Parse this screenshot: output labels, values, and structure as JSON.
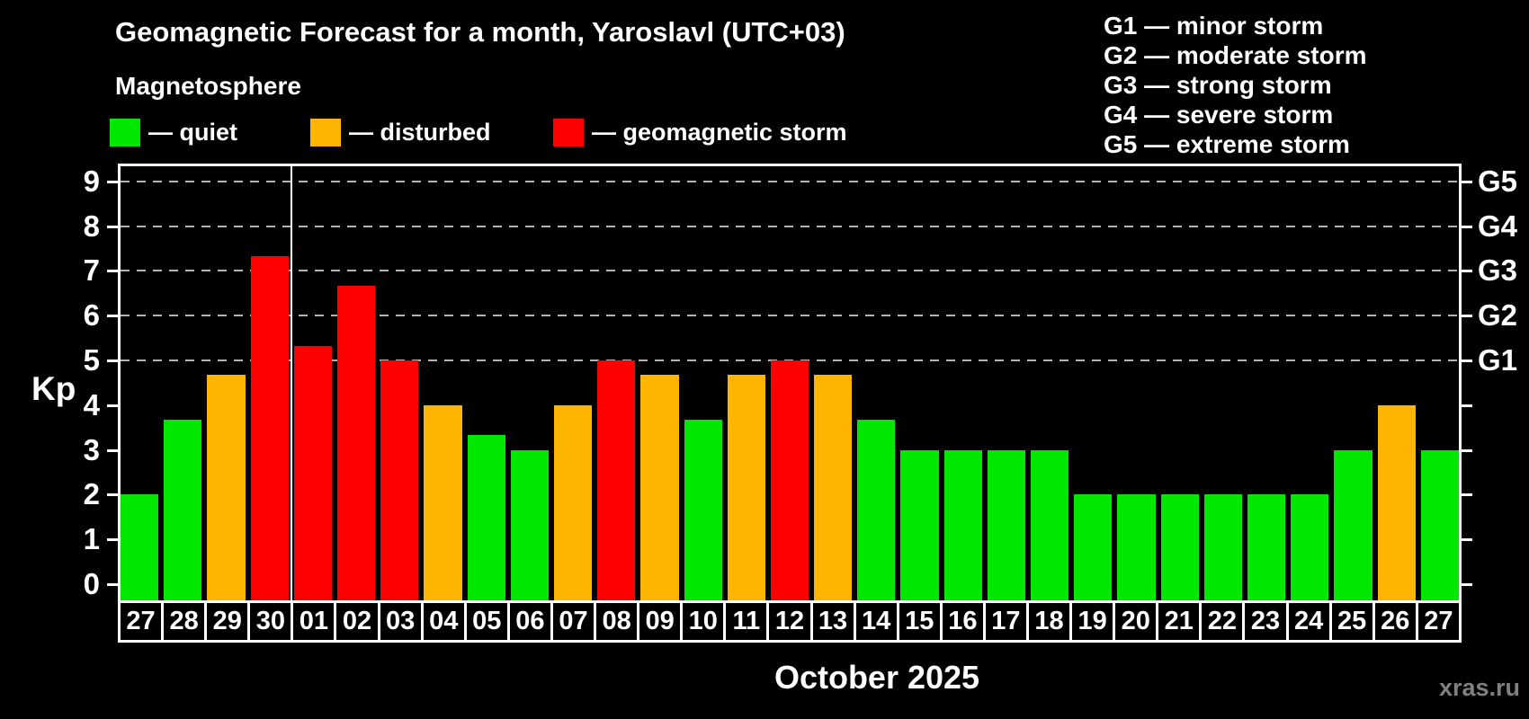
{
  "header": {
    "title": "Geomagnetic Forecast for a month, Yaroslavl (UTC+03)",
    "subtitle": "Magnetosphere"
  },
  "legend": {
    "items": [
      {
        "name": "quiet",
        "label": "— quiet",
        "color": "#00e800"
      },
      {
        "name": "disturbed",
        "label": "— disturbed",
        "color": "#ffb400"
      },
      {
        "name": "storm",
        "label": "— geomagnetic storm",
        "color": "#ff0000"
      }
    ]
  },
  "storm_scale_legend": {
    "items": [
      "G1 — minor storm",
      "G2 — moderate storm",
      "G3 — strong storm",
      "G4 — severe storm",
      "G5 — extreme storm"
    ]
  },
  "chart_data": {
    "type": "bar",
    "title": "Geomagnetic Forecast for a month, Yaroslavl (UTC+03)",
    "ylabel": "Kp",
    "xlabel": "October 2025",
    "ylim": [
      0,
      9.4
    ],
    "grid": "dashed horizontal lines at Kp 5-9 (G1-G5 levels)",
    "legend_position": "top",
    "yticks": [
      0,
      1,
      2,
      3,
      4,
      5,
      6,
      7,
      8,
      9
    ],
    "grid_kp_levels": [
      5,
      6,
      7,
      8,
      9
    ],
    "right_axis_labels": [
      {
        "label": "G1",
        "kp": 5
      },
      {
        "label": "G2",
        "kp": 6
      },
      {
        "label": "G3",
        "kp": 7
      },
      {
        "label": "G4",
        "kp": 8
      },
      {
        "label": "G5",
        "kp": 9
      }
    ],
    "month_separator_after_index": 3,
    "categories": [
      "27",
      "28",
      "29",
      "30",
      "01",
      "02",
      "03",
      "04",
      "05",
      "06",
      "07",
      "08",
      "09",
      "10",
      "11",
      "12",
      "13",
      "14",
      "15",
      "16",
      "17",
      "18",
      "19",
      "20",
      "21",
      "22",
      "23",
      "24",
      "25",
      "26",
      "27"
    ],
    "values": [
      2,
      3.67,
      4.67,
      7.33,
      5.33,
      6.67,
      5,
      4,
      3.33,
      3,
      4,
      5,
      4.67,
      3.67,
      4.67,
      5,
      4.67,
      3.67,
      3,
      3,
      3,
      3,
      2,
      2,
      2,
      2,
      2,
      2,
      3,
      4,
      3
    ],
    "statuses": [
      "quiet",
      "quiet",
      "disturbed",
      "storm",
      "storm",
      "storm",
      "storm",
      "disturbed",
      "quiet",
      "quiet",
      "disturbed",
      "storm",
      "disturbed",
      "quiet",
      "disturbed",
      "storm",
      "disturbed",
      "quiet",
      "quiet",
      "quiet",
      "quiet",
      "quiet",
      "quiet",
      "quiet",
      "quiet",
      "quiet",
      "quiet",
      "quiet",
      "quiet",
      "disturbed",
      "quiet"
    ],
    "colors": {
      "quiet": "#00e800",
      "disturbed": "#ffb400",
      "storm": "#ff0000"
    }
  },
  "footer": {
    "month_label": "October 2025",
    "watermark": "xras.ru"
  }
}
